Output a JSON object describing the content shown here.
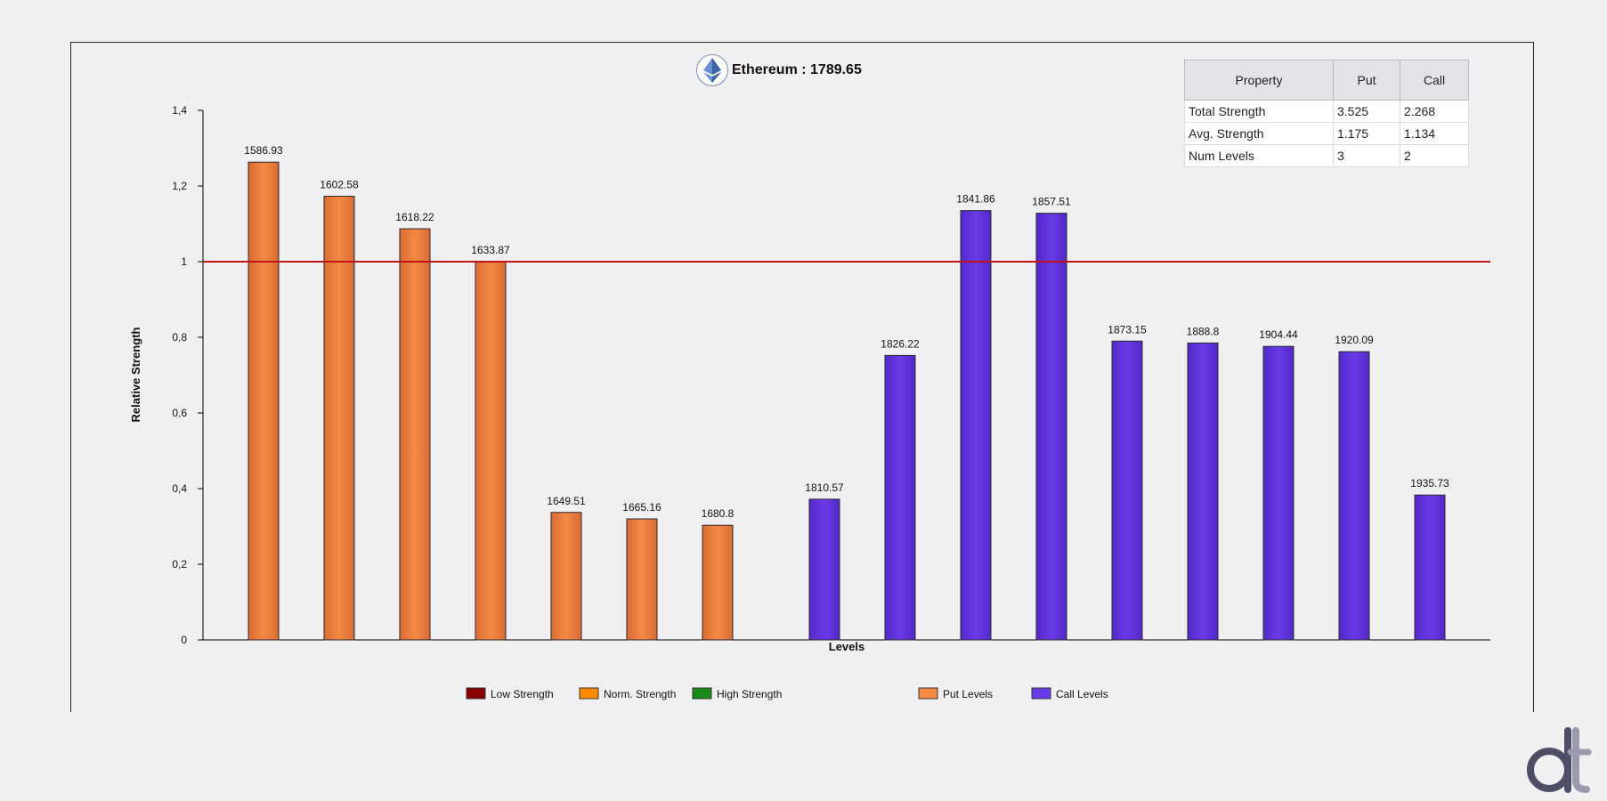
{
  "title": {
    "symbol": "Ethereum",
    "price": "1789.65",
    "text": "Ethereum : 1789.65"
  },
  "stats_table": {
    "headers": [
      "Property",
      "Put",
      "Call"
    ],
    "rows": [
      [
        "Total Strength",
        "3.525",
        "2.268"
      ],
      [
        "Avg. Strength",
        "1.175",
        "1.134"
      ],
      [
        "Num Levels",
        "3",
        "2"
      ]
    ]
  },
  "colors": {
    "put": "#f58a45",
    "call": "#6a3be8",
    "reference_line": "#c0161b",
    "low_strength": "#8b0000",
    "norm_strength": "#ff8c00",
    "high_strength": "#1a8a1a"
  },
  "legend": [
    {
      "label": "Low Strength",
      "color": "#8b0000"
    },
    {
      "label": "Norm. Strength",
      "color": "#ff8c00"
    },
    {
      "label": "High Strength",
      "color": "#1a8a1a"
    },
    {
      "label": "Put Levels",
      "color": "#f58a45"
    },
    {
      "label": "Call Levels",
      "color": "#6a3be8"
    }
  ],
  "logo_icon": "dt-logo-icon",
  "title_icon": "ethereum-icon",
  "chart_data": {
    "type": "bar",
    "xlabel": "Levels",
    "ylabel": "Relative Strength",
    "ylim": [
      0,
      1.4
    ],
    "yticks": [
      "0",
      "0,2",
      "0,4",
      "0,6",
      "0,8",
      "1",
      "1,2",
      "1,4"
    ],
    "yticks_values": [
      0,
      0.2,
      0.4,
      0.6,
      0.8,
      1.0,
      1.2,
      1.4
    ],
    "reference_line": 1.0,
    "grid": false,
    "legend_position": "bottom",
    "series": [
      {
        "name": "Put Levels",
        "categories": [
          "1586.93",
          "1602.58",
          "1618.22",
          "1633.87",
          "1649.51",
          "1665.16",
          "1680.8"
        ],
        "values": [
          1.263,
          1.173,
          1.087,
          1.0,
          0.337,
          0.32,
          0.303
        ]
      },
      {
        "name": "Call Levels",
        "categories": [
          "1810.57",
          "1826.22",
          "1841.86",
          "1857.51",
          "1873.15",
          "1888.8",
          "1904.44",
          "1920.09",
          "1935.73"
        ],
        "values": [
          0.372,
          0.752,
          1.135,
          1.128,
          0.79,
          0.785,
          0.776,
          0.762,
          0.383
        ]
      }
    ]
  }
}
